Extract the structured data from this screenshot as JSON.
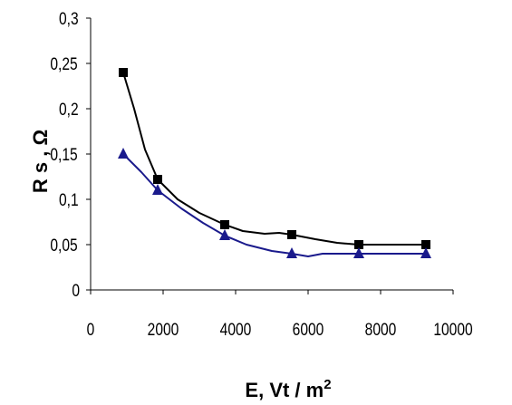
{
  "chart_data": {
    "type": "line",
    "xlabel": "E, Vt / m",
    "xlabel_sup": "2",
    "ylabel": "R s , Ω",
    "xlim": [
      0,
      10000
    ],
    "ylim": [
      0,
      0.3
    ],
    "x_ticks": [
      "0",
      "2000",
      "4000",
      "6000",
      "8000",
      "10000"
    ],
    "y_ticks": [
      "0",
      "0,05",
      "0,1",
      "0,15",
      "0,2",
      "0,25",
      "0,3"
    ],
    "grid": false,
    "legend": "none",
    "series": [
      {
        "marker": "square",
        "color": "#000000",
        "x": [
          900,
          1850,
          3700,
          5550,
          7400,
          9250
        ],
        "y": [
          0.24,
          0.122,
          0.072,
          0.061,
          0.05,
          0.05
        ],
        "curve": [
          [
            900,
            0.24
          ],
          [
            1200,
            0.2
          ],
          [
            1500,
            0.155
          ],
          [
            1850,
            0.122
          ],
          [
            2400,
            0.1
          ],
          [
            3000,
            0.085
          ],
          [
            3700,
            0.072
          ],
          [
            4200,
            0.065
          ],
          [
            4800,
            0.062
          ],
          [
            5200,
            0.063
          ],
          [
            5550,
            0.061
          ],
          [
            6200,
            0.056
          ],
          [
            6800,
            0.052
          ],
          [
            7400,
            0.05
          ],
          [
            9250,
            0.05
          ]
        ]
      },
      {
        "marker": "triangle",
        "color": "#1a1a8c",
        "x": [
          900,
          1850,
          3700,
          5550,
          7400,
          9250
        ],
        "y": [
          0.15,
          0.11,
          0.06,
          0.04,
          0.04,
          0.04
        ],
        "curve": [
          [
            900,
            0.15
          ],
          [
            1400,
            0.13
          ],
          [
            1850,
            0.11
          ],
          [
            2500,
            0.09
          ],
          [
            3100,
            0.074
          ],
          [
            3700,
            0.06
          ],
          [
            4300,
            0.05
          ],
          [
            5000,
            0.043
          ],
          [
            5550,
            0.04
          ],
          [
            6000,
            0.037
          ],
          [
            6400,
            0.04
          ],
          [
            7400,
            0.04
          ],
          [
            9250,
            0.04
          ]
        ]
      }
    ]
  }
}
